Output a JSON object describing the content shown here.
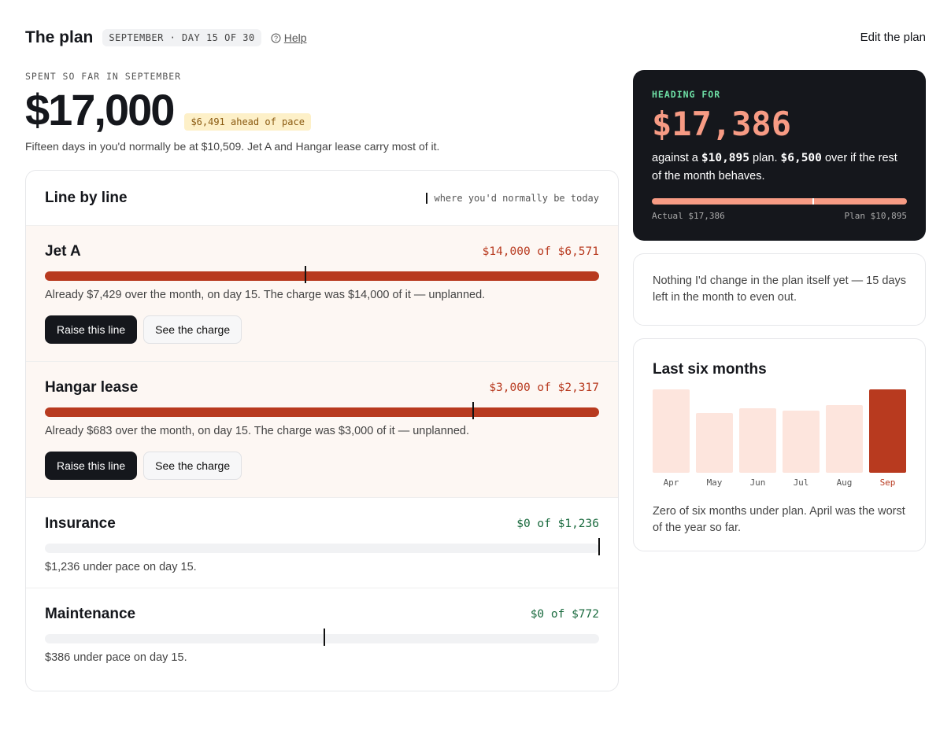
{
  "header": {
    "title": "The plan",
    "badge": "SEPTEMBER · DAY 15 OF 30",
    "help": "Help",
    "edit": "Edit the plan"
  },
  "summary": {
    "eyebrow": "SPENT SO FAR IN SEPTEMBER",
    "amount": "$17,000",
    "pace_tag": "$6,491 ahead of pace",
    "note": "Fifteen days in you'd normally be at $10,509. Jet A and Hangar lease carry most of it."
  },
  "lines": {
    "title": "Line by line",
    "legend": "where you'd normally be today",
    "items": [
      {
        "name": "Jet A",
        "amount": "$14,000 of $6,571",
        "note": "Already $7,429 over the month, on day 15. The charge was $14,000 of it — unplanned.",
        "actions": [
          "Raise this line",
          "See the charge"
        ]
      },
      {
        "name": "Hangar lease",
        "amount": "$3,000 of $2,317",
        "note": "Already $683 over the month, on day 15. The charge was $3,000 of it — unplanned.",
        "actions": [
          "Raise this line",
          "See the charge"
        ]
      },
      {
        "name": "Insurance",
        "amount": "$0 of $1,236",
        "note": "$1,236 under pace on day 15."
      },
      {
        "name": "Maintenance",
        "amount": "$0 of $772",
        "note": "$386 under pace on day 15."
      }
    ]
  },
  "heading": {
    "eyebrow": "HEADING FOR",
    "amount": "$17,386",
    "text": [
      "against a",
      "$10,895",
      "plan.",
      "$6,500",
      "over if the rest of the month behaves."
    ],
    "actual": "Actual $17,386",
    "plan": "Plan $10,895"
  },
  "advice": {
    "text": "Nothing I'd change in the plan itself yet — 15 days left in the month to even out."
  },
  "history": {
    "title": "Last six months",
    "months": [
      "Apr",
      "May",
      "Jun",
      "Jul",
      "Aug",
      "Sep"
    ],
    "note": "Zero of six months under plan. April was the worst of the year so far."
  }
}
